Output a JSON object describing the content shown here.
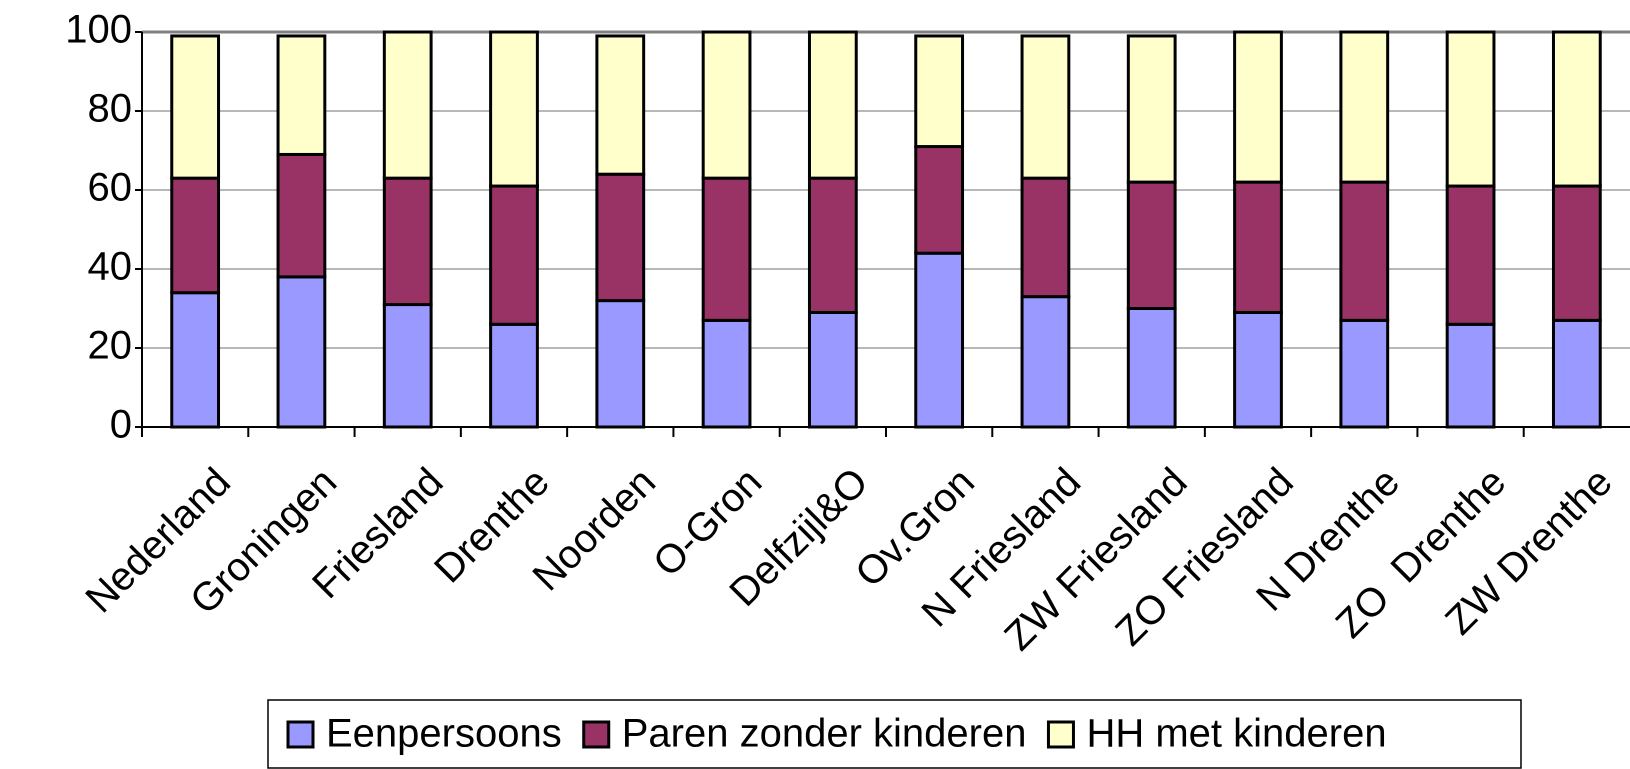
{
  "chart_data": {
    "type": "stacked_bar",
    "categories": [
      "Nederland",
      "Groningen",
      "Friesland",
      "Drenthe",
      "Noorden",
      "O-Gron",
      "Delfzijl&O",
      "Ov.Gron",
      "N Friesland",
      "ZW Friesland",
      "ZO Friesland",
      "N Drenthe",
      "ZO  Drenthe",
      "ZW Drenthe"
    ],
    "series": [
      {
        "name": "Eenpersoons",
        "color": "#9999ff",
        "values": [
          34,
          38,
          31,
          26,
          32,
          27,
          29,
          44,
          33,
          30,
          29,
          27,
          26,
          27
        ]
      },
      {
        "name": "Paren zonder kinderen",
        "color": "#993366",
        "values": [
          29,
          31,
          32,
          35,
          32,
          36,
          34,
          27,
          30,
          32,
          33,
          35,
          35,
          34
        ]
      },
      {
        "name": "HH met kinderen",
        "color": "#ffffcc",
        "values": [
          36,
          30,
          37,
          39,
          35,
          37,
          37,
          28,
          36,
          37,
          38,
          38,
          39,
          39
        ]
      }
    ],
    "ylim": [
      0,
      100
    ],
    "yticks": [
      0,
      20,
      40,
      60,
      80,
      100
    ],
    "grid": true,
    "legend": "bottom"
  }
}
